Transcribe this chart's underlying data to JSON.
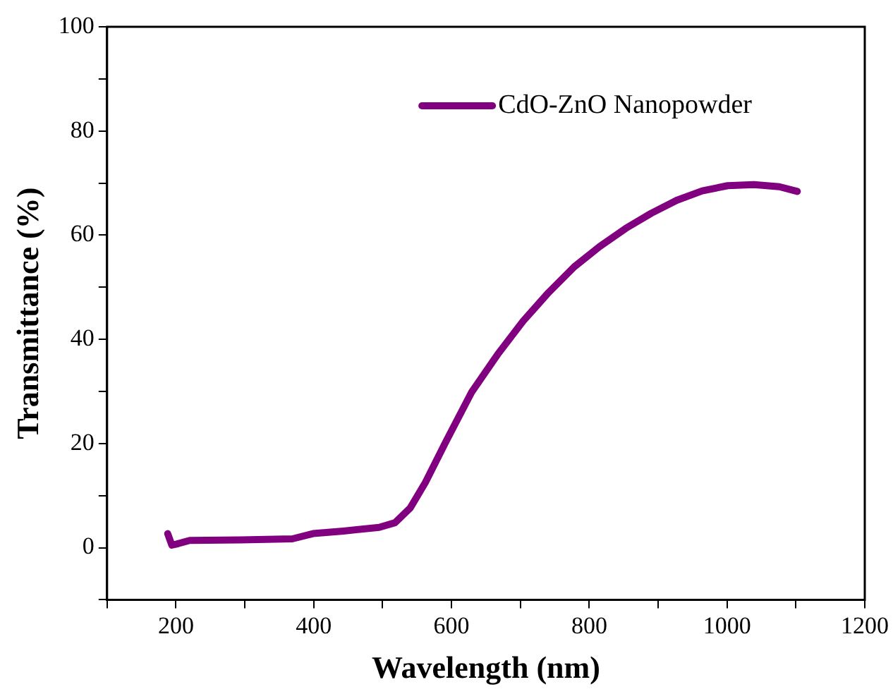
{
  "chart_data": {
    "type": "line",
    "xlabel": "Wavelength (nm)",
    "ylabel": "Transmittance (%)",
    "xlim": [
      100,
      1200
    ],
    "xticks": [
      {
        "value": 100,
        "label": null
      },
      200,
      {
        "value": 300,
        "label": null
      },
      400,
      {
        "value": 500,
        "label": null
      },
      600,
      {
        "value": 700,
        "label": null
      },
      800,
      {
        "value": 900,
        "label": null
      },
      1000,
      {
        "value": 1100,
        "label": null
      },
      1200
    ],
    "ylim": [
      -10,
      100
    ],
    "yticks": [
      {
        "value": -10,
        "label": null
      },
      0,
      {
        "value": 10,
        "label": null
      },
      20,
      {
        "value": 30,
        "label": null
      },
      40,
      {
        "value": 50,
        "label": null
      },
      60,
      {
        "value": 70,
        "label": null
      },
      80,
      {
        "value": 90,
        "label": null
      },
      100
    ],
    "grid": false,
    "legend": "top right",
    "marker": "none",
    "line_style": "solid",
    "series": [
      {
        "name": "CdO-ZnO Nanopowder",
        "color": "#800080",
        "x": [
          188,
          194,
          201,
          220,
          294,
          369,
          399,
          443,
          495,
          518,
          540,
          562,
          592,
          629,
          667,
          704,
          741,
          778,
          815,
          853,
          890,
          927,
          964,
          1001,
          1039,
          1076,
          1102
        ],
        "values": [
          2.7,
          0.5,
          0.7,
          1.4,
          1.5,
          1.7,
          2.7,
          3.2,
          3.9,
          4.8,
          7.6,
          12.5,
          20.4,
          29.8,
          37.1,
          43.5,
          49,
          53.9,
          57.8,
          61.3,
          64.2,
          66.7,
          68.5,
          69.5,
          69.7,
          69.3,
          68.4
        ]
      }
    ]
  }
}
